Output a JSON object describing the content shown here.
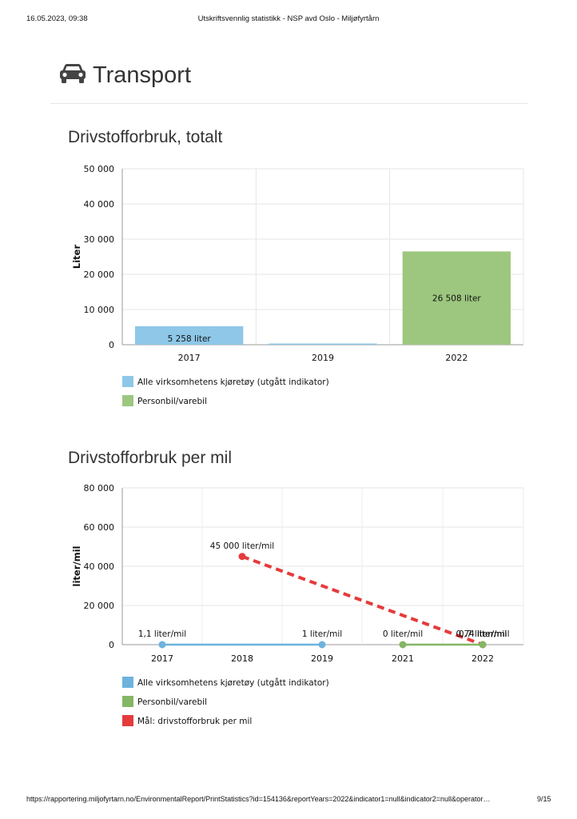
{
  "header": {
    "datetime": "16.05.2023, 09:38",
    "doc_title": "Utskriftsvennlig statistikk - NSP avd Oslo - Miljøfyrtårn"
  },
  "section": {
    "title": "Transport",
    "icon": "car-icon"
  },
  "chart1": {
    "title": "Drivstofforbruk, totalt",
    "colors": {
      "series1": "#8ec7e8",
      "series2": "#9dc77f"
    }
  },
  "chart2": {
    "title": "Drivstofforbruk per mil",
    "colors": {
      "series1": "#6db3dd",
      "series2": "#84b665",
      "series3": "#e53b3b"
    }
  },
  "chart_data": [
    {
      "type": "bar",
      "title": "Drivstofforbruk, totalt",
      "ylabel": "Liter",
      "ylim": [
        0,
        50000
      ],
      "yticks": [
        "0",
        "10 000",
        "20 000",
        "30 000",
        "40 000",
        "50 000"
      ],
      "categories": [
        "2017",
        "2019",
        "2022"
      ],
      "series": [
        {
          "name": "Alle virksomhetens kjøretøy (utgått indikator)",
          "values": [
            5258,
            0,
            null
          ]
        },
        {
          "name": "Personbil/varebil",
          "values": [
            null,
            null,
            26508
          ]
        }
      ],
      "bar_labels": [
        "5 258 liter",
        "26 508 liter"
      ],
      "legend": [
        "Alle virksomhetens kjøretøy (utgått indikator)",
        "Personbil/varebil"
      ]
    },
    {
      "type": "line",
      "title": "Drivstofforbruk per mil",
      "ylabel": "liter/mil",
      "ylim": [
        0,
        80000
      ],
      "yticks": [
        "0",
        "20 000",
        "40 000",
        "60 000",
        "80 000"
      ],
      "x": [
        "2017",
        "2018",
        "2019",
        "2021",
        "2022"
      ],
      "series": [
        {
          "name": "Alle virksomhetens kjøretøy (utgått indikator)",
          "values": [
            1.1,
            null,
            1,
            null,
            null
          ]
        },
        {
          "name": "Personbil/varebil",
          "values": [
            null,
            null,
            null,
            0,
            0.74
          ]
        },
        {
          "name": "Mål: drivstofforbruk per mil",
          "values": [
            null,
            45000,
            null,
            null,
            0.7
          ]
        }
      ],
      "point_labels": [
        "1,1 liter/mil",
        "1 liter/mil",
        "0 liter/mil",
        "0,74 liter/mil",
        "45 000 liter/mil",
        "0,7 liter/mil"
      ],
      "legend": [
        "Alle virksomhetens kjøretøy (utgått indikator)",
        "Personbil/varebil",
        "Mål: drivstofforbruk per mil"
      ]
    }
  ],
  "footer": {
    "url": "https://rapportering.miljofyrtarn.no/EnvironmentalReport/PrintStatistics?id=154136&reportYears=2022&indicator1=null&indicator2=null&operator…",
    "page": "9/15"
  }
}
